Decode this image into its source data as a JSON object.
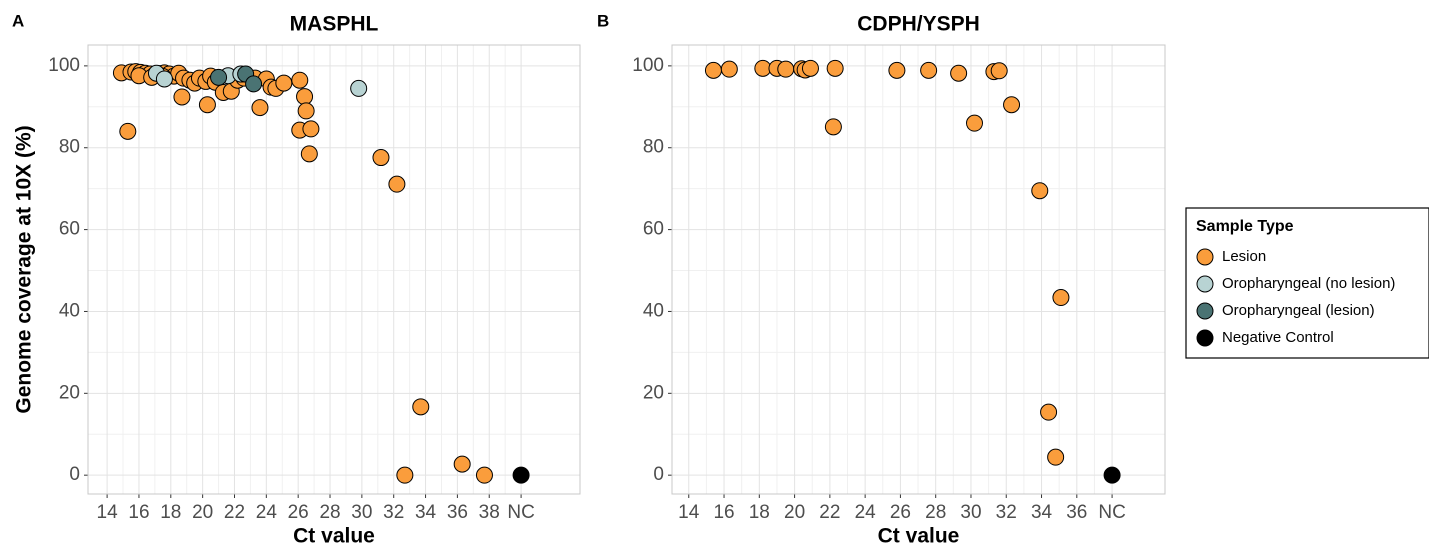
{
  "panel_labels": [
    "A",
    "B"
  ],
  "chart_data": [
    {
      "type": "scatter",
      "title": "MASPHL",
      "x_label": "Ct value",
      "y_label": "Genome coverage at 10X (%)",
      "legend_title": "Sample Type",
      "legend": "right",
      "grid": true,
      "xlim": [
        12.8,
        43.7
      ],
      "ylim": [
        -4.6,
        105.1
      ],
      "xticks": [
        14,
        16,
        18,
        20,
        22,
        24,
        26,
        28,
        30,
        32,
        34,
        36,
        38,
        {
          "value": 40,
          "label": "NC"
        }
      ],
      "yticks": [
        0,
        20,
        40,
        60,
        80,
        100
      ],
      "series": [
        {
          "name": "Lesion",
          "color": "#fa9d3c",
          "x": [
            14.9,
            15.3,
            15.5,
            15.8,
            16.1,
            16.4,
            16.7,
            17.0,
            17.3,
            17.6,
            17.9,
            18.2,
            18.5,
            18.8,
            16.0,
            16.8,
            17.5,
            18.7,
            19.2,
            19.5,
            19.8,
            20.2,
            20.5,
            20.3,
            20.8,
            21.3,
            21.8,
            22.2,
            22.6,
            23.3,
            23.6,
            24.0,
            24.3,
            24.6,
            25.1,
            26.1,
            26.1,
            26.4,
            26.5,
            26.8,
            26.7,
            31.2,
            32.2,
            32.7,
            33.7,
            36.3,
            37.7
          ],
          "values": [
            98.3,
            84.0,
            98.5,
            98.6,
            98.4,
            98.2,
            98.0,
            97.8,
            98.1,
            98.3,
            98.0,
            97.5,
            98.2,
            97.0,
            97.6,
            97.2,
            97.4,
            92.4,
            96.5,
            95.8,
            97.0,
            96.2,
            97.5,
            90.5,
            96.0,
            93.5,
            93.8,
            96.5,
            97.0,
            97.0,
            89.8,
            96.8,
            94.8,
            94.5,
            95.8,
            96.5,
            84.3,
            92.5,
            89.0,
            84.6,
            78.5,
            77.6,
            71.1,
            0,
            16.7,
            2.7,
            0
          ]
        },
        {
          "name": "Oropharyngeal (no lesion)",
          "color": "#b8d3d3",
          "x": [
            17.1,
            17.6,
            21.6,
            22.4,
            29.8
          ],
          "values": [
            98.2,
            96.8,
            97.6,
            98.0,
            94.5
          ]
        },
        {
          "name": "Oropharyngeal (lesion)",
          "color": "#4a7373",
          "x": [
            21.0,
            22.7,
            23.2
          ],
          "values": [
            97.2,
            98.0,
            95.6
          ]
        },
        {
          "name": "Negative Control",
          "color": "#000000",
          "x": [
            40
          ],
          "values": [
            0
          ]
        }
      ]
    },
    {
      "type": "scatter",
      "title": "CDPH/YSPH",
      "x_label": "Ct value",
      "grid": true,
      "xlim": [
        13.05,
        41.0
      ],
      "ylim": [
        -4.6,
        105.1
      ],
      "xticks": [
        14,
        16,
        18,
        20,
        22,
        24,
        26,
        28,
        30,
        32,
        34,
        36,
        {
          "value": 38,
          "label": "NC"
        }
      ],
      "yticks": [
        0,
        20,
        40,
        60,
        80,
        100
      ],
      "series": [
        {
          "x": [
            15.4,
            16.3,
            18.2,
            19.0,
            19.5,
            20.4,
            20.6,
            20.9,
            22.3,
            22.2,
            25.8,
            27.6,
            29.3,
            30.2,
            31.3,
            31.6,
            32.3,
            33.9,
            34.4,
            34.8,
            35.1
          ],
          "values": [
            98.9,
            99.2,
            99.4,
            99.4,
            99.2,
            99.3,
            99.0,
            99.4,
            99.4,
            85.1,
            98.9,
            98.9,
            98.2,
            86.0,
            98.6,
            98.8,
            90.5,
            69.5,
            15.4,
            4.4,
            43.4
          ]
        },
        {
          "x": [],
          "values": []
        },
        {
          "x": [],
          "values": []
        },
        {
          "x": [
            38
          ],
          "values": [
            0
          ]
        }
      ]
    }
  ]
}
